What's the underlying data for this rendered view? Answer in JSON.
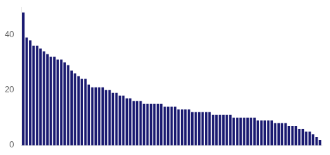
{
  "chart_data": {
    "type": "bar",
    "categories": [
      null,
      null,
      null,
      null,
      null,
      null,
      null,
      null,
      null,
      null,
      null,
      null,
      null,
      null,
      null,
      null,
      null,
      null,
      null,
      null,
      null,
      null,
      null,
      null,
      null,
      null,
      null,
      null,
      null,
      null,
      null,
      null,
      null,
      null,
      null,
      null,
      null,
      null,
      null,
      null,
      null,
      null,
      null,
      null,
      null,
      null,
      null,
      null,
      null,
      null,
      null,
      null,
      null,
      null,
      null,
      null,
      null,
      null,
      null,
      null,
      null,
      null,
      null,
      null,
      null,
      null,
      null,
      null,
      null,
      null,
      null,
      null,
      null,
      null,
      null,
      null,
      null,
      null,
      null,
      null,
      null,
      null,
      null,
      null,
      null,
      null,
      null
    ],
    "values": [
      48,
      39,
      38,
      36,
      36,
      35,
      34,
      33,
      32,
      32,
      31,
      31,
      30,
      29,
      27,
      26,
      25,
      24,
      24,
      22,
      21,
      21,
      21,
      21,
      20,
      20,
      19,
      19,
      18,
      18,
      17,
      17,
      16,
      16,
      16,
      15,
      15,
      15,
      15,
      15,
      15,
      14,
      14,
      14,
      14,
      13,
      13,
      13,
      13,
      12,
      12,
      12,
      12,
      12,
      12,
      11,
      11,
      11,
      11,
      11,
      11,
      10,
      10,
      10,
      10,
      10,
      10,
      10,
      9,
      9,
      9,
      9,
      9,
      8,
      8,
      8,
      8,
      7,
      7,
      7,
      6,
      6,
      5,
      5,
      4,
      3,
      2
    ],
    "color": "#191970",
    "ylim": [
      0,
      50
    ],
    "yticks": [
      0,
      20,
      40
    ],
    "grid": false,
    "tick_labels": "y"
  }
}
